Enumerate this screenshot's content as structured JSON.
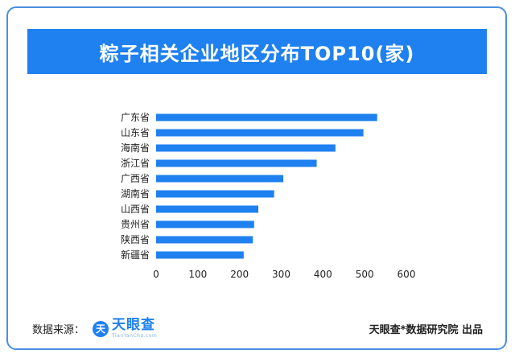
{
  "chart_data": {
    "type": "bar",
    "orientation": "horizontal",
    "title": "粽子相关企业地区分布TOP10(家)",
    "categories": [
      "广东省",
      "山东省",
      "海南省",
      "浙江省",
      "广西省",
      "湖南省",
      "山西省",
      "贵州省",
      "陕西省",
      "新疆省"
    ],
    "values": [
      530,
      497,
      430,
      385,
      305,
      283,
      245,
      235,
      232,
      210
    ],
    "xlim": [
      0,
      600
    ],
    "xticks": [
      "0",
      "100",
      "200",
      "300",
      "400",
      "500",
      "600"
    ],
    "bar_color": "#1f80f0",
    "grid": false
  },
  "footer": {
    "source_label": "数据来源：",
    "logo_mark": "天",
    "logo_name": "天眼查",
    "logo_sub": "TianYanCha.com",
    "credit": "天眼查*数据研究院 出品"
  }
}
